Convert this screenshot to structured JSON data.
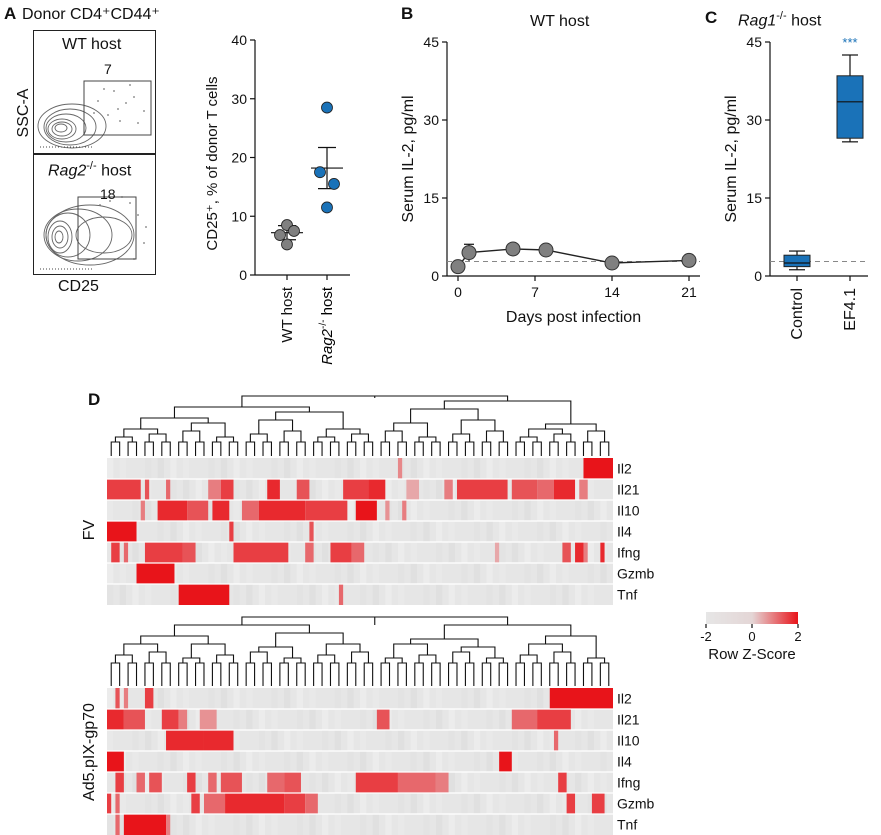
{
  "panels": {
    "A": {
      "letter": "A",
      "title": "Donor CD4⁺CD44⁺",
      "flow": [
        {
          "host": "WT host",
          "gate_pct": "7"
        },
        {
          "host_italic": "Rag2",
          "host_sup": "-/-",
          "host_rest": " host",
          "gate_pct": "18"
        }
      ],
      "flow_ylabel": "SSC-A",
      "flow_xlabel": "CD25"
    },
    "B": {
      "letter": "B",
      "title": "WT host"
    },
    "C": {
      "letter": "C",
      "title_italic": "Rag1",
      "title_sup": "-/-",
      "title_rest": " host"
    },
    "D": {
      "letter": "D"
    }
  },
  "chart_data": [
    {
      "id": "A-scatter",
      "type": "scatter",
      "title": "",
      "ylabel": "CD25⁺, % of donor T cells",
      "xlabel": "",
      "ylim": [
        0,
        40
      ],
      "yticks": [
        0,
        10,
        20,
        30,
        40
      ],
      "categories": [
        "WT host",
        "Rag2-/- host"
      ],
      "category_labels": [
        {
          "plain": "WT host"
        },
        {
          "italic": "Rag2",
          "sup": "-/-",
          "rest": " host"
        }
      ],
      "series": [
        {
          "name": "WT host",
          "color": "#808080",
          "values": [
            8.5,
            6.8,
            7.5,
            5.2
          ],
          "mean": 7.2,
          "sem": 1.2
        },
        {
          "name": "Rag2-/- host",
          "color": "#1a72b8",
          "values": [
            28.5,
            17.5,
            15.5,
            11.5
          ],
          "mean": 18.2,
          "sem": 3.5
        }
      ]
    },
    {
      "id": "B-line",
      "type": "line",
      "title": "WT host",
      "xlabel": "Days post infection",
      "ylabel": "Serum IL-2, pg/ml",
      "xlim": [
        -1,
        22
      ],
      "ylim": [
        0,
        45
      ],
      "xticks": [
        0,
        7,
        14,
        21
      ],
      "yticks": [
        0,
        15,
        30,
        45
      ],
      "reference_line": 2.8,
      "series": [
        {
          "name": "IL-2",
          "color": "#808080",
          "x": [
            0,
            1,
            5,
            8,
            14,
            21
          ],
          "y": [
            1.8,
            4.5,
            5.2,
            5.0,
            2.5,
            3.0
          ],
          "err": [
            0.6,
            1.6,
            0.8,
            0.7,
            0.5,
            0.4
          ]
        }
      ]
    },
    {
      "id": "C-box",
      "type": "box",
      "title": "Rag1-/- host",
      "ylabel": "Serum IL-2, pg/ml",
      "ylim": [
        0,
        45
      ],
      "yticks": [
        0,
        15,
        30,
        45
      ],
      "reference_line": 2.8,
      "significance": "***",
      "categories": [
        "Control",
        "EF4.1"
      ],
      "boxes": [
        {
          "name": "Control",
          "min": 1.2,
          "q1": 1.8,
          "median": 2.5,
          "q3": 4.0,
          "max": 4.8,
          "color": "#1a72b8"
        },
        {
          "name": "EF4.1",
          "min": 25.8,
          "q1": 26.5,
          "median": 33.5,
          "q3": 38.5,
          "max": 42.5,
          "color": "#1a72b8"
        }
      ]
    },
    {
      "id": "D-heatmaps",
      "type": "heatmap",
      "colorbar": {
        "min": -2,
        "max": 2,
        "ticks": [
          -2,
          0,
          2
        ],
        "label": "Row Z-Score",
        "low_color": "#e6e6e6",
        "high_color": "#e8141a"
      },
      "genes": [
        "Il2",
        "Il21",
        "Il10",
        "Il4",
        "Ifng",
        "Gzmb",
        "Tnf"
      ],
      "maps": [
        {
          "name": "FV",
          "ncols": 120,
          "rows": [
            {
              "gene": "Il2",
              "segments": [
                [
                  69,
                  70,
                  0.45
                ],
                [
                  113,
                  120,
                  1.0
                ]
              ]
            },
            {
              "gene": "Il21",
              "segments": [
                [
                  0,
                  8,
                  0.8
                ],
                [
                  9,
                  10,
                  0.7
                ],
                [
                  14,
                  15,
                  0.6
                ],
                [
                  24,
                  27,
                  0.5
                ],
                [
                  27,
                  30,
                  0.8
                ],
                [
                  38,
                  41,
                  0.9
                ],
                [
                  45,
                  48,
                  0.7
                ],
                [
                  56,
                  62,
                  0.8
                ],
                [
                  62,
                  66,
                  0.9
                ],
                [
                  71,
                  74,
                  0.3
                ],
                [
                  80,
                  82,
                  0.5
                ],
                [
                  83,
                  95,
                  0.8
                ],
                [
                  96,
                  102,
                  0.7
                ],
                [
                  102,
                  106,
                  0.6
                ],
                [
                  106,
                  111,
                  0.9
                ],
                [
                  112,
                  114,
                  0.5
                ]
              ]
            },
            {
              "gene": "Il10",
              "segments": [
                [
                  8,
                  9,
                  0.5
                ],
                [
                  12,
                  19,
                  0.9
                ],
                [
                  19,
                  24,
                  0.7
                ],
                [
                  25,
                  29,
                  0.9
                ],
                [
                  32,
                  36,
                  0.6
                ],
                [
                  36,
                  47,
                  0.9
                ],
                [
                  47,
                  57,
                  0.8
                ],
                [
                  59,
                  64,
                  1.0
                ],
                [
                  66,
                  67,
                  0.4
                ],
                [
                  70,
                  71,
                  0.5
                ]
              ]
            },
            {
              "gene": "Il4",
              "segments": [
                [
                  0,
                  7,
                  1.0
                ],
                [
                  29,
                  30,
                  0.8
                ],
                [
                  48,
                  49,
                  0.7
                ]
              ]
            },
            {
              "gene": "Ifng",
              "segments": [
                [
                  1,
                  3,
                  0.8
                ],
                [
                  4,
                  5,
                  0.6
                ],
                [
                  9,
                  18,
                  0.8
                ],
                [
                  18,
                  21,
                  0.7
                ],
                [
                  30,
                  43,
                  0.8
                ],
                [
                  47,
                  49,
                  0.6
                ],
                [
                  53,
                  58,
                  0.8
                ],
                [
                  58,
                  61,
                  0.6
                ],
                [
                  92,
                  93,
                  0.3
                ],
                [
                  108,
                  110,
                  0.7
                ],
                [
                  111,
                  113,
                  0.9
                ],
                [
                  113,
                  114,
                  0.5
                ],
                [
                  117,
                  118,
                  0.9
                ]
              ]
            },
            {
              "gene": "Gzmb",
              "segments": [
                [
                  7,
                  16,
                  1.0
                ]
              ]
            },
            {
              "gene": "Tnf",
              "segments": [
                [
                  17,
                  29,
                  1.0
                ],
                [
                  55,
                  56,
                  0.6
                ]
              ]
            }
          ]
        },
        {
          "name": "Ad5.pIX-gp70",
          "ncols": 120,
          "rows": [
            {
              "gene": "Il2",
              "segments": [
                [
                  2,
                  3,
                  0.7
                ],
                [
                  4,
                  5,
                  0.5
                ],
                [
                  9,
                  11,
                  0.8
                ],
                [
                  105,
                  120,
                  1.0
                ]
              ]
            },
            {
              "gene": "Il21",
              "segments": [
                [
                  0,
                  4,
                  0.9
                ],
                [
                  4,
                  9,
                  0.7
                ],
                [
                  13,
                  17,
                  0.8
                ],
                [
                  17,
                  19,
                  0.5
                ],
                [
                  22,
                  26,
                  0.4
                ],
                [
                  64,
                  67,
                  0.7
                ],
                [
                  96,
                  102,
                  0.6
                ],
                [
                  102,
                  110,
                  0.8
                ]
              ]
            },
            {
              "gene": "Il10",
              "segments": [
                [
                  14,
                  23,
                  0.9
                ],
                [
                  23,
                  30,
                  0.9
                ],
                [
                  106,
                  107,
                  0.6
                ]
              ]
            },
            {
              "gene": "Il4",
              "segments": [
                [
                  0,
                  4,
                  1.0
                ],
                [
                  93,
                  96,
                  1.0
                ]
              ]
            },
            {
              "gene": "Ifng",
              "segments": [
                [
                  2,
                  4,
                  0.8
                ],
                [
                  7,
                  9,
                  0.6
                ],
                [
                  10,
                  13,
                  0.7
                ],
                [
                  19,
                  21,
                  0.8
                ],
                [
                  24,
                  26,
                  0.6
                ],
                [
                  27,
                  32,
                  0.7
                ],
                [
                  38,
                  42,
                  0.6
                ],
                [
                  42,
                  46,
                  0.7
                ],
                [
                  59,
                  69,
                  0.8
                ],
                [
                  69,
                  78,
                  0.6
                ],
                [
                  78,
                  81,
                  0.5
                ],
                [
                  107,
                  109,
                  0.8
                ]
              ]
            },
            {
              "gene": "Gzmb",
              "segments": [
                [
                  0,
                  1,
                  0.8
                ],
                [
                  2,
                  3,
                  0.6
                ],
                [
                  20,
                  22,
                  0.8
                ],
                [
                  23,
                  28,
                  0.6
                ],
                [
                  28,
                  42,
                  0.9
                ],
                [
                  42,
                  47,
                  0.8
                ],
                [
                  47,
                  50,
                  0.6
                ],
                [
                  109,
                  111,
                  0.8
                ],
                [
                  115,
                  118,
                  0.8
                ]
              ]
            },
            {
              "gene": "Tnf",
              "segments": [
                [
                  2,
                  3,
                  0.6
                ],
                [
                  4,
                  14,
                  1.0
                ],
                [
                  14,
                  15,
                  0.5
                ]
              ]
            }
          ]
        }
      ]
    }
  ]
}
